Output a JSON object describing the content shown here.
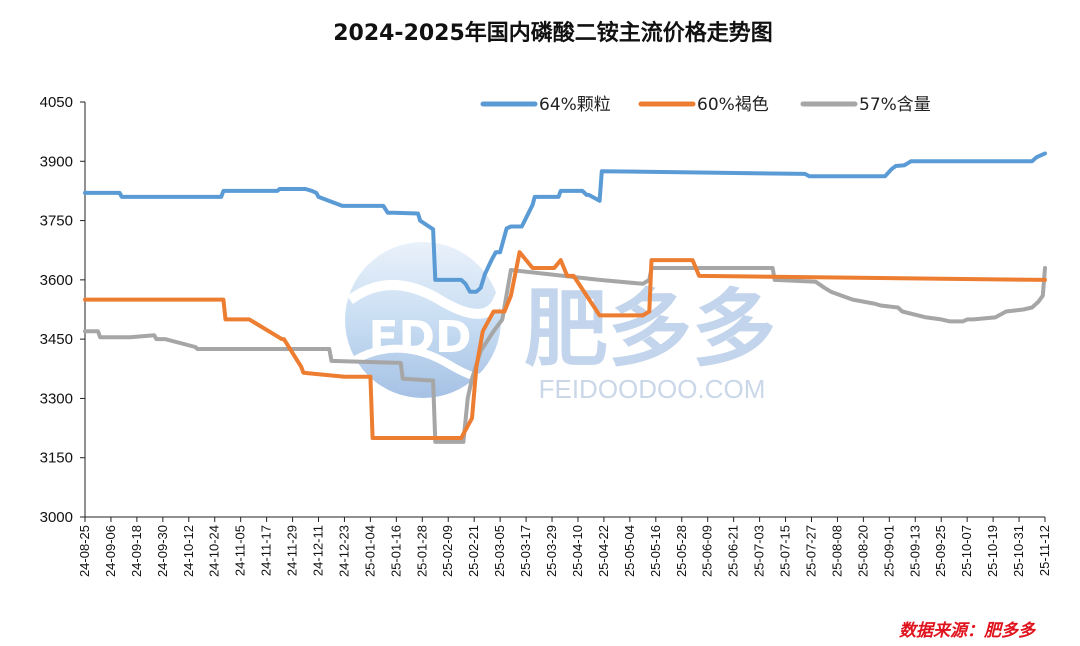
{
  "chart_data": {
    "type": "line",
    "title": "2024-2025年国内磷酸二铵主流价格走势图",
    "xlabel": "",
    "ylabel": "",
    "ylim": [
      3000,
      4050
    ],
    "yticks": [
      3000,
      3150,
      3300,
      3450,
      3600,
      3750,
      3900,
      4050
    ],
    "xlim": [
      "2024-08-25",
      "2025-11-12"
    ],
    "xtick_labels": [
      "24-08-25",
      "24-09-06",
      "24-09-18",
      "24-09-30",
      "24-10-12",
      "24-10-24",
      "24-11-05",
      "24-11-17",
      "24-11-29",
      "24-12-11",
      "24-12-23",
      "25-01-04",
      "25-01-16",
      "25-01-28",
      "25-02-09",
      "25-02-21",
      "25-03-05",
      "25-03-17",
      "25-03-29",
      "25-04-10",
      "25-04-22",
      "25-05-04",
      "25-05-16",
      "25-05-28",
      "25-06-09",
      "25-06-21",
      "25-07-03",
      "25-07-15",
      "25-07-27",
      "25-08-08",
      "25-08-20",
      "25-09-01",
      "25-09-13",
      "25-09-25",
      "25-10-07",
      "25-10-19",
      "25-10-31",
      "25-11-12"
    ],
    "grid": false,
    "legend_position": "top-right",
    "series": [
      {
        "name": "64%颗粒",
        "color": "#5b9bd5",
        "x": [
          "2024-08-25",
          "2024-09-10",
          "2024-09-11",
          "2024-10-27",
          "2024-10-28",
          "2024-11-22",
          "2024-11-23",
          "2024-12-05",
          "2024-12-08",
          "2024-12-10",
          "2024-12-11",
          "2024-12-22",
          "2024-12-24",
          "2025-01-10",
          "2025-01-12",
          "2025-01-14",
          "2025-01-15",
          "2025-01-26",
          "2025-01-27",
          "2025-02-02",
          "2025-02-03",
          "2025-02-15",
          "2025-02-17",
          "2025-02-19",
          "2025-02-20",
          "2025-02-22",
          "2025-02-24",
          "2025-02-26",
          "2025-03-01",
          "2025-03-03",
          "2025-03-05",
          "2025-03-08",
          "2025-03-10",
          "2025-03-15",
          "2025-03-20",
          "2025-03-21",
          "2025-04-01",
          "2025-04-02",
          "2025-04-12",
          "2025-04-13",
          "2025-04-14",
          "2025-04-15",
          "2025-04-20",
          "2025-04-21",
          "2025-07-24",
          "2025-07-26",
          "2025-08-30",
          "2025-09-02",
          "2025-09-04",
          "2025-09-08",
          "2025-09-11",
          "2025-09-14",
          "2025-11-06",
          "2025-11-08",
          "2025-11-12"
        ],
        "values": [
          3820,
          3820,
          3810,
          3810,
          3825,
          3825,
          3830,
          3830,
          3825,
          3820,
          3810,
          3787,
          3787,
          3787,
          3770,
          3770,
          3770,
          3768,
          3750,
          3728,
          3600,
          3600,
          3590,
          3570,
          3570,
          3570,
          3580,
          3615,
          3650,
          3670,
          3670,
          3730,
          3735,
          3735,
          3790,
          3810,
          3810,
          3825,
          3825,
          3820,
          3815,
          3815,
          3800,
          3875,
          3868,
          3862,
          3862,
          3880,
          3888,
          3890,
          3900,
          3900,
          3900,
          3910,
          3920
        ]
      },
      {
        "name": "60%褐色",
        "color": "#ed7d31",
        "x": [
          "2024-08-25",
          "2024-10-28",
          "2024-10-29",
          "2024-11-08",
          "2024-11-09",
          "2024-11-24",
          "2024-11-25",
          "2024-12-03",
          "2024-12-04",
          "2024-12-23",
          "2024-12-24",
          "2025-01-04",
          "2025-01-05",
          "2025-02-14",
          "2025-02-15",
          "2025-02-20",
          "2025-02-22",
          "2025-02-25",
          "2025-03-02",
          "2025-03-07",
          "2025-03-10",
          "2025-03-14",
          "2025-03-20",
          "2025-03-25",
          "2025-03-30",
          "2025-04-02",
          "2025-04-05",
          "2025-04-08",
          "2025-04-20",
          "2025-04-25",
          "2025-05-10",
          "2025-05-13",
          "2025-05-14",
          "2025-06-02",
          "2025-06-05",
          "2025-11-12"
        ],
        "values": [
          3550,
          3550,
          3500,
          3500,
          3500,
          3450,
          3450,
          3380,
          3365,
          3355,
          3355,
          3355,
          3200,
          3200,
          3200,
          3250,
          3380,
          3470,
          3520,
          3520,
          3560,
          3670,
          3630,
          3630,
          3630,
          3650,
          3610,
          3610,
          3510,
          3510,
          3510,
          3520,
          3650,
          3650,
          3610,
          3600
        ]
      },
      {
        "name": "57%含量",
        "color": "#a6a6a6",
        "x": [
          "2024-08-25",
          "2024-08-31",
          "2024-09-01",
          "2024-09-14",
          "2024-09-15",
          "2024-09-26",
          "2024-09-27",
          "2024-10-01",
          "2024-10-15",
          "2024-10-16",
          "2024-12-16",
          "2024-12-17",
          "2025-01-18",
          "2025-01-19",
          "2025-02-02",
          "2025-02-03",
          "2025-02-10",
          "2025-02-16",
          "2025-02-18",
          "2025-02-20",
          "2025-02-24",
          "2025-03-02",
          "2025-03-06",
          "2025-03-10",
          "2025-04-20",
          "2025-05-10",
          "2025-05-13",
          "2025-05-14",
          "2025-06-02",
          "2025-06-10",
          "2025-07-09",
          "2025-07-10",
          "2025-07-29",
          "2025-08-02",
          "2025-08-05",
          "2025-08-10",
          "2025-08-15",
          "2025-08-20",
          "2025-08-25",
          "2025-08-28",
          "2025-09-05",
          "2025-09-07",
          "2025-09-18",
          "2025-09-25",
          "2025-09-29",
          "2025-10-02",
          "2025-10-05",
          "2025-10-07",
          "2025-10-10",
          "2025-10-20",
          "2025-10-25",
          "2025-11-02",
          "2025-11-06",
          "2025-11-09",
          "2025-11-11",
          "2025-11-12"
        ],
        "values": [
          3470,
          3470,
          3455,
          3455,
          3455,
          3460,
          3450,
          3450,
          3430,
          3425,
          3425,
          3395,
          3390,
          3350,
          3345,
          3190,
          3190,
          3190,
          3300,
          3350,
          3420,
          3470,
          3500,
          3625,
          3600,
          3590,
          3600,
          3630,
          3630,
          3630,
          3630,
          3600,
          3595,
          3580,
          3570,
          3560,
          3550,
          3545,
          3540,
          3535,
          3530,
          3520,
          3505,
          3500,
          3495,
          3495,
          3495,
          3500,
          3500,
          3505,
          3520,
          3525,
          3530,
          3545,
          3560,
          3630
        ]
      }
    ]
  },
  "watermark": {
    "logo_text": "FDD",
    "brand_text": "肥多多",
    "url_text": "FEIDOODOO.COM"
  },
  "source_note": "数据来源：肥多多"
}
